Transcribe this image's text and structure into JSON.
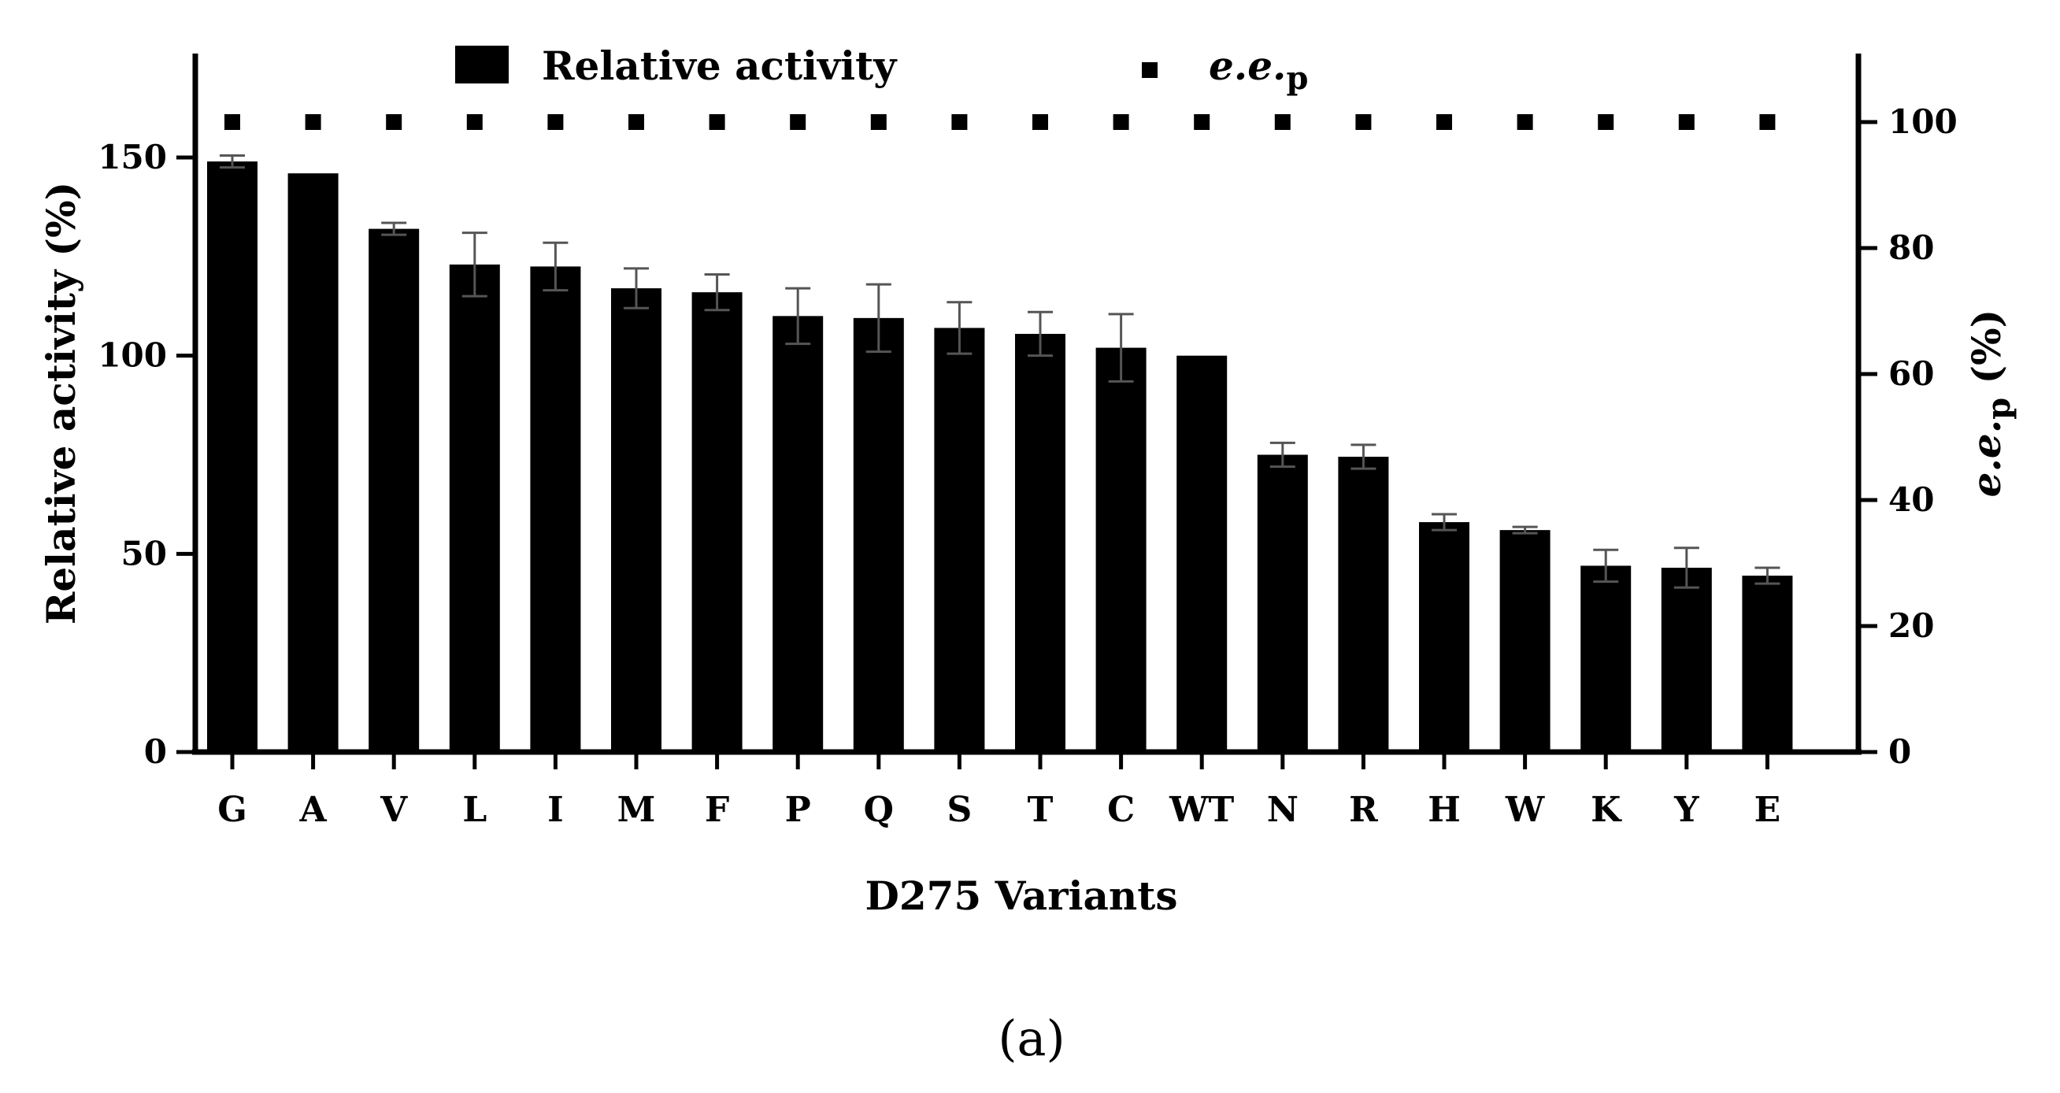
{
  "chart_data": {
    "type": "bar",
    "categories": [
      "G",
      "A",
      "V",
      "L",
      "I",
      "M",
      "F",
      "P",
      "Q",
      "S",
      "T",
      "C",
      "WT",
      "N",
      "R",
      "H",
      "W",
      "K",
      "Y",
      "E"
    ],
    "series": [
      {
        "name": "Relative activity",
        "axis": "left",
        "values": [
          149,
          146,
          132,
          123,
          122.5,
          117,
          116,
          110,
          109.5,
          107,
          105.5,
          102,
          100,
          75,
          74.5,
          58,
          56,
          47,
          46.5,
          44.5
        ],
        "errors": [
          1.5,
          0,
          1.5,
          8,
          6,
          5,
          4.5,
          7,
          8.5,
          6.5,
          5.5,
          8.5,
          0,
          3,
          3,
          2,
          0.8,
          4,
          5,
          2
        ]
      },
      {
        "name": "e.e.p",
        "axis": "right",
        "values": [
          100,
          100,
          100,
          100,
          100,
          100,
          100,
          100,
          100,
          100,
          100,
          100,
          100,
          100,
          100,
          100,
          100,
          100,
          100,
          100
        ]
      }
    ],
    "xlabel": "D275 Variants",
    "ylabel": "Relative activity (%)",
    "y2label": "e.e.p (%)",
    "ylim": [
      0,
      175
    ],
    "y2lim": [
      0,
      110
    ],
    "yticks": [
      "0",
      "50",
      "100",
      "150"
    ],
    "y2ticks": [
      "0",
      "20",
      "40",
      "60",
      "80",
      "100"
    ],
    "grid": false,
    "legend": {
      "position": "top",
      "entries": [
        "Relative activity",
        "e.e.p"
      ]
    },
    "panel_label": "(a)"
  },
  "colors": {
    "bar": "#000000",
    "marker": "#000000",
    "errorbar": "#555555",
    "axis": "#000000"
  }
}
